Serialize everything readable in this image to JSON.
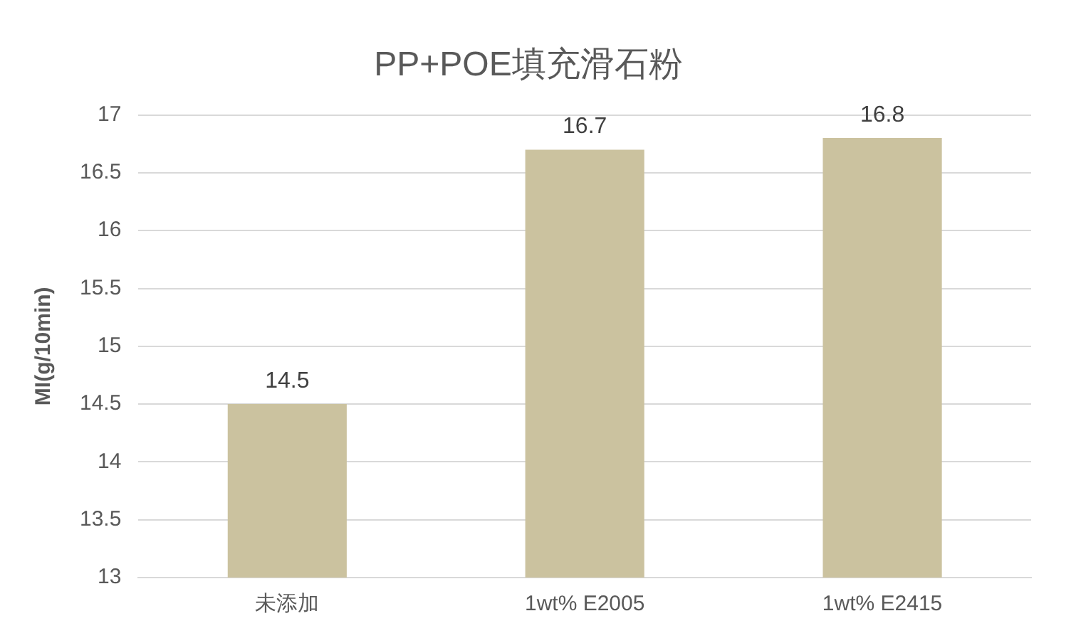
{
  "chart_data": {
    "type": "bar",
    "title": "PP+POE填充滑石粉",
    "ylabel": "MI(g/10min)",
    "categories": [
      "未添加",
      "1wt% E2005",
      "1wt% E2415"
    ],
    "values": [
      14.5,
      16.7,
      16.8
    ],
    "color": "#cbc29f",
    "ylim": [
      13,
      17
    ],
    "yticks": [
      13,
      13.5,
      14,
      14.5,
      15,
      15.5,
      16,
      16.5,
      17
    ],
    "grid": "y",
    "data_labels": true,
    "legend": false
  }
}
